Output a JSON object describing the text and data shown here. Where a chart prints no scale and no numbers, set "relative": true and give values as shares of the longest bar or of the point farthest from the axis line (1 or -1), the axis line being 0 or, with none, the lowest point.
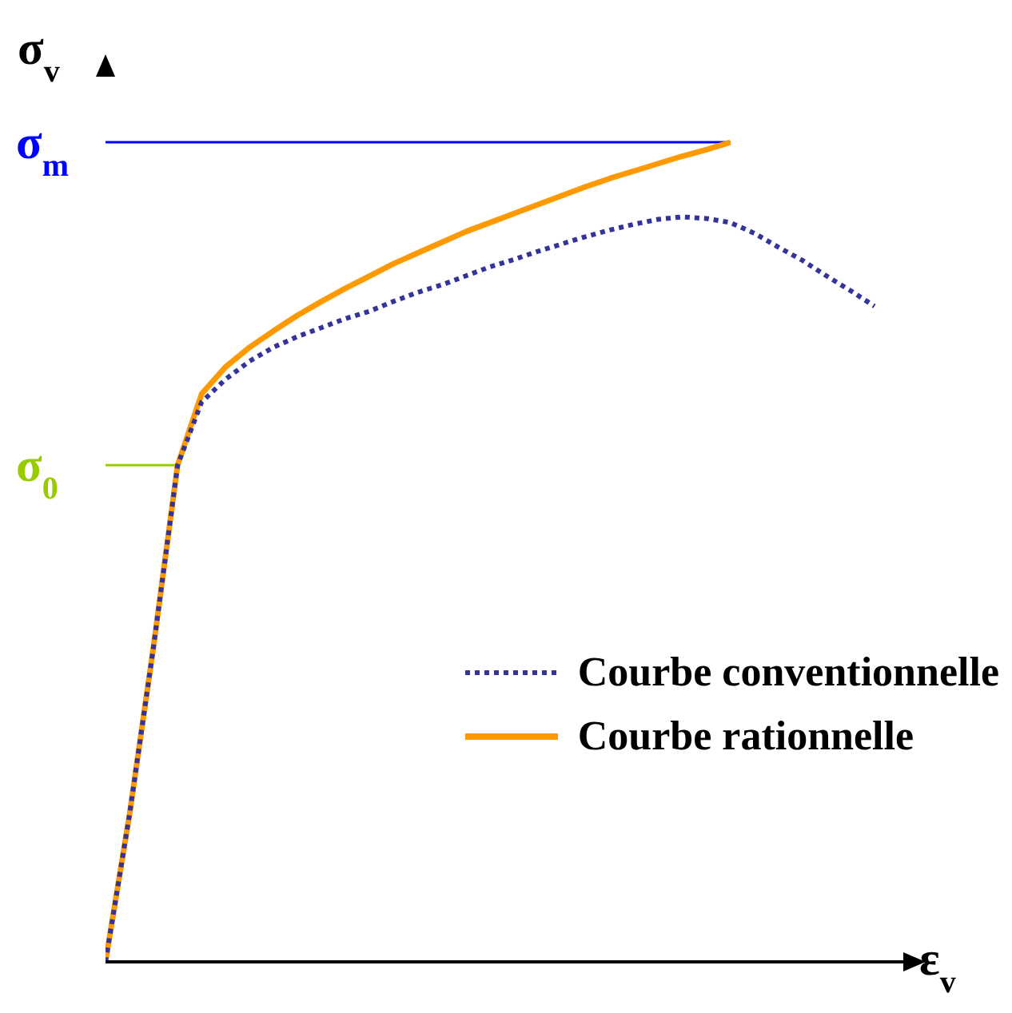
{
  "chart_data": {
    "type": "line",
    "relative": true,
    "xlabel": "ε$_{v}$",
    "ylabel": "σ$_{v}$",
    "legend": "bottom right",
    "grid": false,
    "marker": "none",
    "categories": [
      null,
      null,
      null,
      null,
      null,
      null,
      null,
      null,
      null,
      null,
      null,
      null,
      null,
      null,
      null,
      null,
      null,
      null,
      null,
      null,
      null,
      null,
      null,
      null,
      null,
      null,
      null,
      null,
      null,
      null,
      null,
      null,
      null
    ],
    "series": [
      {
        "name": "Courbe conventionnelle",
        "color": "#333399",
        "line_style": "dotted",
        "values": [
          0,
          0.18,
          0.385,
          0.606,
          0.683,
          0.711,
          0.733,
          0.75,
          0.763,
          0.774,
          0.785,
          0.794,
          0.806,
          0.817,
          0.826,
          0.837,
          0.848,
          0.857,
          0.867,
          0.876,
          0.885,
          0.893,
          0.9,
          0.906,
          0.909,
          0.907,
          0.902,
          0.889,
          0.872,
          0.856,
          0.837,
          0.819,
          0.8
        ]
      },
      {
        "name": "Courbe rationnelle",
        "color": "#ff9900",
        "line_style": "solid",
        "values": [
          0,
          0.18,
          0.385,
          0.606,
          0.693,
          0.726,
          0.75,
          0.77,
          0.789,
          0.806,
          0.822,
          0.837,
          0.852,
          0.865,
          0.878,
          0.891,
          0.902,
          0.913,
          0.924,
          0.935,
          0.946,
          0.956,
          0.965,
          0.974,
          0.983,
          0.991,
          1,
          null,
          null,
          null,
          null,
          null,
          null
        ]
      }
    ],
    "ref_lines": [
      {
        "axis": "y",
        "value": 1,
        "label": "σ$_{m}$",
        "color": "#0000ff"
      },
      {
        "axis": "y",
        "value": 0.606,
        "label": "σ$_{0}$",
        "color": "#99cc00"
      }
    ]
  }
}
